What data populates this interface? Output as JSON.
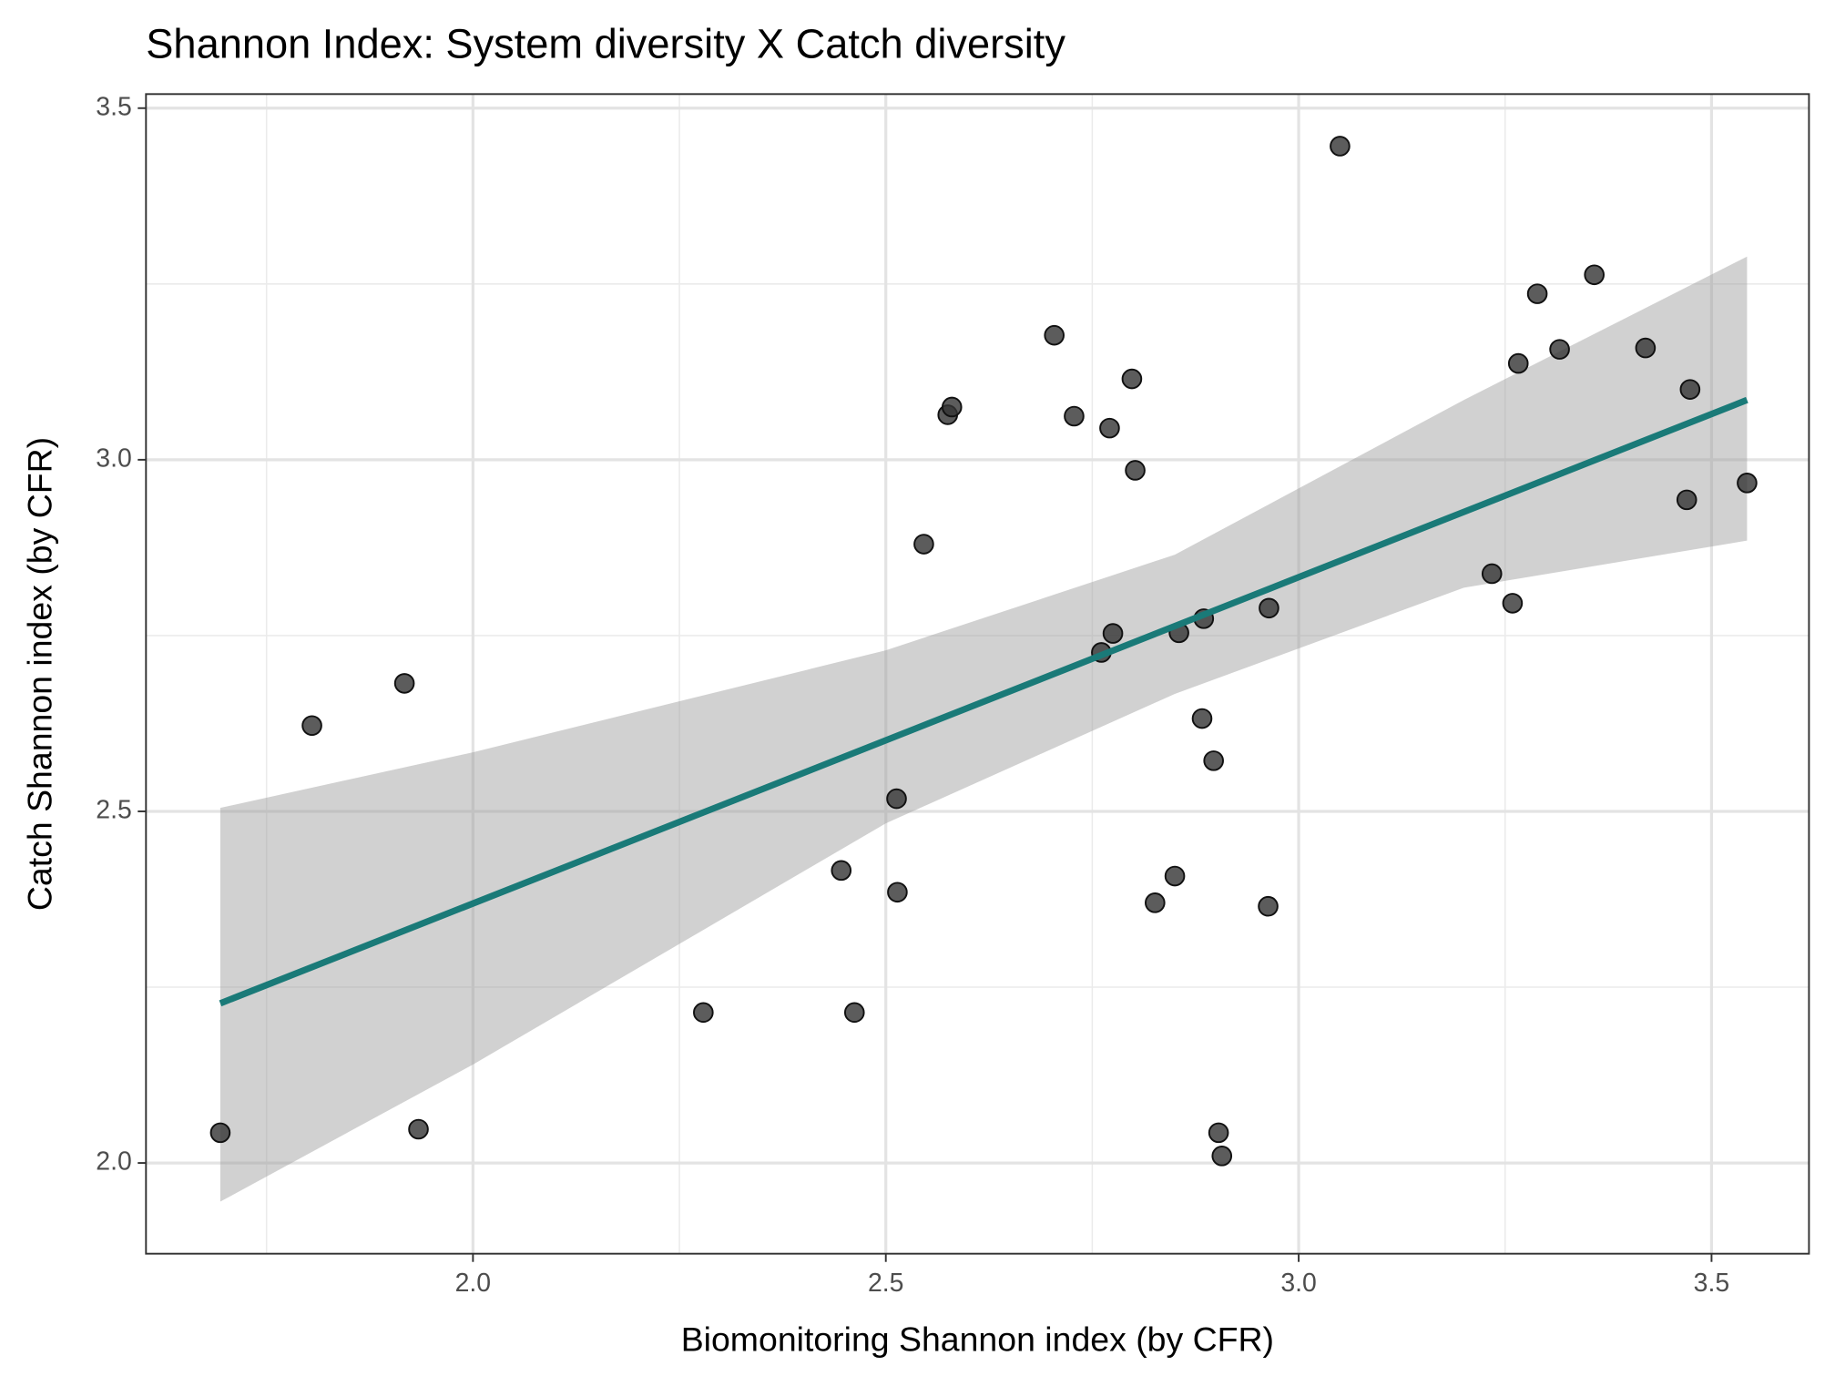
{
  "chart_data": {
    "type": "scatter",
    "title": "Shannon Index: System diversity X Catch diversity",
    "x_label": "Biomonitoring Shannon index (by CFR)",
    "y_label": "Catch Shannon index (by CFR)",
    "xlim": [
      1.604,
      3.618
    ],
    "ylim": [
      1.871,
      3.52
    ],
    "xticks": [
      {
        "value": 2,
        "label": "2.0"
      },
      2.5,
      {
        "value": 3,
        "label": "3.0"
      },
      3.5
    ],
    "yticks": [
      {
        "value": 2,
        "label": "2.0"
      },
      2.5,
      {
        "value": 3,
        "label": "3.0"
      },
      3.5
    ],
    "minor_xticks": [
      1.75,
      2.25,
      2.75,
      3.25
    ],
    "minor_yticks": [
      2.25,
      2.75,
      3.25
    ],
    "grid": true,
    "point_color": "#333333",
    "x": [
      1.694,
      1.805,
      1.917,
      1.934,
      2.279,
      2.446,
      2.462,
      2.513,
      2.514,
      2.546,
      2.575,
      2.58,
      2.704,
      2.728,
      2.771,
      2.798,
      2.802,
      2.761,
      2.775,
      2.826,
      2.85,
      2.855,
      2.883,
      2.885,
      2.897,
      2.903,
      2.907,
      2.963,
      2.964,
      3.05,
      3.234,
      3.259,
      3.266,
      3.289,
      3.316,
      3.358,
      3.42,
      3.47,
      3.474,
      3.543
    ],
    "values": [
      2.043,
      2.622,
      2.682,
      2.048,
      2.214,
      2.416,
      2.214,
      2.518,
      2.385,
      2.88,
      3.064,
      3.075,
      3.177,
      3.062,
      3.045,
      3.115,
      2.985,
      2.726,
      2.753,
      2.37,
      2.408,
      2.754,
      2.632,
      2.774,
      2.572,
      2.043,
      2.01,
      2.365,
      2.789,
      3.446,
      2.838,
      2.796,
      3.137,
      3.236,
      3.157,
      3.263,
      3.159,
      2.943,
      3.1,
      2.967
    ],
    "fit": {
      "color": "#1a7a78",
      "x": [
        1.694,
        3.543
      ],
      "values": [
        2.227,
        3.085
      ]
    },
    "ribbon": {
      "color": "#999999",
      "x": [
        1.694,
        2.0,
        2.5,
        2.85,
        3.2,
        3.543
      ],
      "upper": [
        2.505,
        2.584,
        2.729,
        2.865,
        3.085,
        3.289
      ],
      "lower": [
        1.945,
        2.14,
        2.483,
        2.667,
        2.818,
        2.885
      ]
    }
  }
}
